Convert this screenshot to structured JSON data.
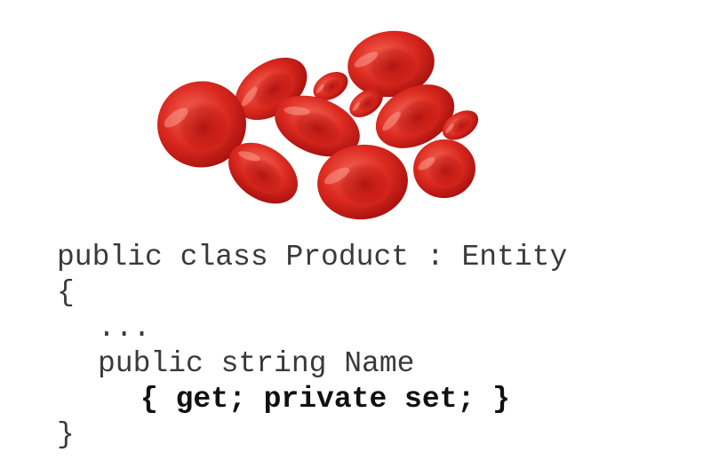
{
  "illustration": {
    "name": "red-blood-cells",
    "colors": {
      "cell_light": "#f0564a",
      "cell_mid": "#d8231c",
      "cell_dark": "#9e0f0c"
    }
  },
  "code": {
    "lines": [
      "public class Product : Entity",
      "{",
      "...",
      "public string Name",
      "{ get; private set; }",
      "}"
    ]
  }
}
